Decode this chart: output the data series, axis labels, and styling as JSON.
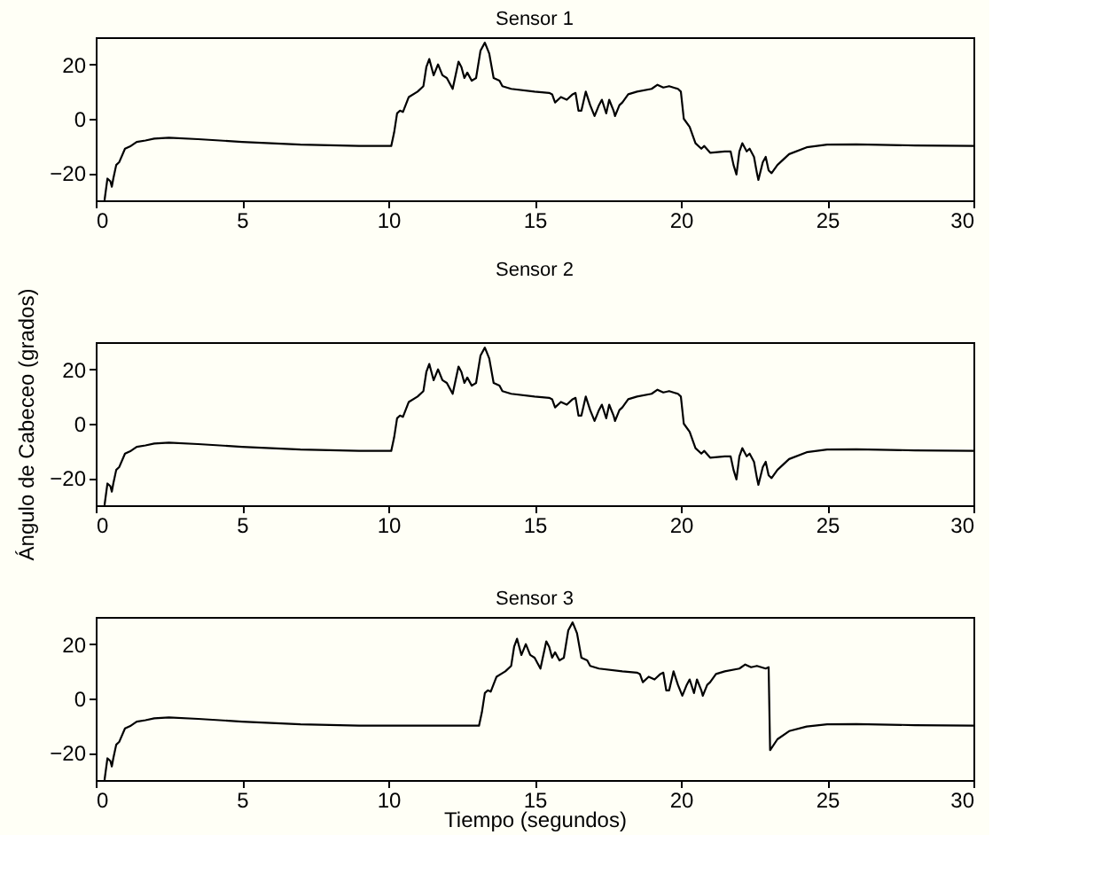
{
  "chart_data": [
    {
      "type": "line",
      "title": "Sensor 1",
      "xlim": [
        0,
        30
      ],
      "xticks": [
        0,
        5,
        10,
        15,
        20,
        25,
        30
      ],
      "ylim": [
        -30,
        30
      ],
      "yticks": [
        -20,
        0,
        20
      ],
      "grid": false,
      "series": [
        {
          "color": "#000000",
          "x": [
            0.3,
            0.4,
            0.5,
            0.55,
            0.6,
            0.7,
            0.8,
            1.0,
            1.2,
            1.4,
            1.7,
            2.0,
            2.5,
            3.5,
            5,
            7,
            9,
            10.1,
            10.2,
            10.3,
            10.4,
            10.5,
            10.7,
            11,
            11.2,
            11.3,
            11.4,
            11.55,
            11.7,
            11.85,
            12.0,
            12.2,
            12.4,
            12.5,
            12.6,
            12.7,
            12.85,
            13.0,
            13.15,
            13.3,
            13.45,
            13.6,
            13.8,
            13.9,
            14.2,
            15,
            15.5,
            15.6,
            15.7,
            15.9,
            16.1,
            16.3,
            16.4,
            16.5,
            16.6,
            16.75,
            16.9,
            17.05,
            17.2,
            17.3,
            17.45,
            17.55,
            17.7,
            17.75,
            17.9,
            18.0,
            18.2,
            18.5,
            19,
            19.2,
            19.4,
            19.6,
            19.9,
            20,
            20.1,
            20.3,
            20.5,
            20.7,
            20.8,
            21,
            21.5,
            21.7,
            21.8,
            21.9,
            22.0,
            22.1,
            22.25,
            22.35,
            22.5,
            22.6,
            22.65,
            22.8,
            22.9,
            23.0,
            23.1,
            23.3,
            23.7,
            24.3,
            25,
            26,
            28,
            30
          ],
          "values": [
            -30,
            -22,
            -23,
            -25,
            -22,
            -17,
            -16,
            -11,
            -10,
            -8.5,
            -8,
            -7.3,
            -7,
            -7.5,
            -8.5,
            -9.5,
            -10,
            -10,
            -5,
            2,
            3,
            2.5,
            8,
            10,
            12,
            19,
            22,
            16,
            20,
            16,
            15,
            11,
            21,
            19,
            15,
            17,
            14,
            15,
            25,
            28,
            24,
            15,
            14,
            12,
            11,
            10,
            9.5,
            9,
            6,
            8,
            7,
            9,
            9.5,
            3,
            3,
            10,
            5,
            1,
            5,
            7,
            2,
            7,
            3,
            1,
            5,
            6,
            9,
            10,
            11,
            12.5,
            11.5,
            12,
            11,
            10,
            0,
            -3,
            -9,
            -11,
            -10,
            -12.5,
            -12,
            -12,
            -17,
            -20.5,
            -12,
            -9,
            -12,
            -11,
            -14,
            -20,
            -22.5,
            -16,
            -14,
            -19,
            -20,
            -17,
            -13,
            -10.5,
            -9.5,
            -9.4,
            -9.8,
            -10
          ]
        }
      ]
    },
    {
      "type": "line",
      "title": "Sensor 2",
      "ylabel": "Ángulo de Cabeceo (grados)",
      "xlim": [
        0,
        30
      ],
      "xticks": [
        0,
        5,
        10,
        15,
        20,
        25,
        30
      ],
      "ylim": [
        -30,
        30
      ],
      "yticks": [
        -20,
        0,
        20
      ],
      "grid": false,
      "series": [
        {
          "color": "#000000",
          "x": [
            0.3,
            0.4,
            0.5,
            0.55,
            0.6,
            0.7,
            0.8,
            1.0,
            1.2,
            1.4,
            1.7,
            2.0,
            2.5,
            3.5,
            5,
            7,
            9,
            10.1,
            10.2,
            10.3,
            10.4,
            10.5,
            10.7,
            11,
            11.2,
            11.3,
            11.4,
            11.55,
            11.7,
            11.85,
            12.0,
            12.2,
            12.4,
            12.5,
            12.6,
            12.7,
            12.85,
            13.0,
            13.15,
            13.3,
            13.45,
            13.6,
            13.8,
            13.9,
            14.2,
            15,
            15.5,
            15.6,
            15.7,
            15.9,
            16.1,
            16.3,
            16.4,
            16.5,
            16.6,
            16.75,
            16.9,
            17.05,
            17.2,
            17.3,
            17.45,
            17.55,
            17.7,
            17.75,
            17.9,
            18.0,
            18.2,
            18.5,
            19,
            19.2,
            19.4,
            19.6,
            19.9,
            20,
            20.1,
            20.3,
            20.5,
            20.7,
            20.8,
            21,
            21.5,
            21.7,
            21.8,
            21.9,
            22.0,
            22.1,
            22.25,
            22.35,
            22.5,
            22.6,
            22.65,
            22.8,
            22.9,
            23.0,
            23.1,
            23.3,
            23.7,
            24.3,
            25,
            26,
            28,
            30
          ],
          "values": [
            -30,
            -22,
            -23,
            -25,
            -22,
            -17,
            -16,
            -11,
            -10,
            -8.5,
            -8,
            -7.3,
            -7,
            -7.5,
            -8.5,
            -9.5,
            -10,
            -10,
            -5,
            2,
            3,
            2.5,
            8,
            10,
            12,
            19,
            22,
            16,
            20,
            16,
            15,
            11,
            21,
            19,
            15,
            17,
            14,
            15,
            25,
            28,
            24,
            15,
            14,
            12,
            11,
            10,
            9.5,
            9,
            6,
            8,
            7,
            9,
            9.5,
            3,
            3,
            10,
            5,
            1,
            5,
            7,
            2,
            7,
            3,
            1,
            5,
            6,
            9,
            10,
            11,
            12.5,
            11.5,
            12,
            11,
            10,
            0,
            -3,
            -9,
            -11,
            -10,
            -12.5,
            -12,
            -12,
            -17,
            -20.5,
            -12,
            -9,
            -12,
            -11,
            -14,
            -20,
            -22.5,
            -16,
            -14,
            -19,
            -20,
            -17,
            -13,
            -10.5,
            -9.5,
            -9.4,
            -9.8,
            -10
          ]
        }
      ]
    },
    {
      "type": "line",
      "title": "Sensor 3",
      "xlabel": "Tiempo (segundos)",
      "xlim": [
        0,
        30
      ],
      "xticks": [
        0,
        5,
        10,
        15,
        20,
        25,
        30
      ],
      "ylim": [
        -30,
        30
      ],
      "yticks": [
        -20,
        0,
        20
      ],
      "grid": false,
      "series": [
        {
          "color": "#000000",
          "x": [
            0.3,
            0.4,
            0.5,
            0.55,
            0.6,
            0.7,
            0.8,
            1.0,
            1.2,
            1.4,
            1.7,
            2.0,
            2.5,
            3.5,
            5,
            7,
            9,
            10,
            13.1,
            13.2,
            13.3,
            13.4,
            13.5,
            13.7,
            14,
            14.2,
            14.3,
            14.4,
            14.55,
            14.7,
            14.85,
            15.0,
            15.2,
            15.4,
            15.5,
            15.6,
            15.7,
            15.85,
            16.0,
            16.15,
            16.3,
            16.45,
            16.6,
            16.8,
            16.9,
            17.2,
            18,
            18.5,
            18.6,
            18.7,
            18.9,
            19.1,
            19.3,
            19.4,
            19.5,
            19.6,
            19.75,
            19.9,
            20.05,
            20.2,
            20.3,
            20.45,
            20.55,
            20.7,
            20.75,
            20.9,
            21.0,
            21.2,
            21.5,
            22,
            22.2,
            22.4,
            22.6,
            22.9,
            23,
            23.05,
            23.3,
            23.7,
            24.3,
            25,
            26,
            28,
            30
          ],
          "values": [
            -30,
            -22,
            -23,
            -25,
            -22,
            -17,
            -16,
            -11,
            -10,
            -8.5,
            -8,
            -7.3,
            -7,
            -7.5,
            -8.5,
            -9.5,
            -10,
            -10,
            -10,
            -5,
            2,
            3,
            2.5,
            8,
            10,
            12,
            19,
            22,
            16,
            20,
            16,
            15,
            11,
            21,
            19,
            15,
            17,
            14,
            15,
            25,
            28,
            24,
            15,
            14,
            12,
            11,
            10,
            9.5,
            9,
            6,
            8,
            7,
            9,
            9.5,
            3,
            3,
            10,
            5,
            1,
            5,
            7,
            2,
            7,
            3,
            1,
            5,
            6,
            9,
            10,
            11,
            12.5,
            11.5,
            12,
            11,
            11.5,
            -19,
            -15,
            -12,
            -10.3,
            -9.5,
            -9.4,
            -9.8,
            -10
          ]
        }
      ]
    }
  ]
}
